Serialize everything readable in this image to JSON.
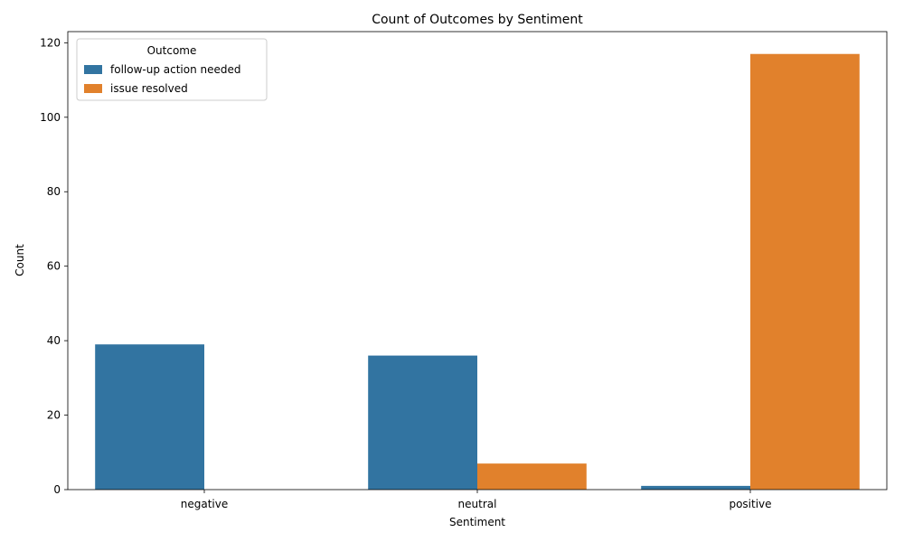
{
  "chart_data": {
    "type": "bar",
    "title": "Count of Outcomes by Sentiment",
    "xlabel": "Sentiment",
    "ylabel": "Count",
    "categories": [
      "negative",
      "neutral",
      "positive"
    ],
    "series": [
      {
        "name": "follow-up action needed",
        "values": [
          39,
          36,
          1
        ],
        "color": "#3274a1"
      },
      {
        "name": "issue resolved",
        "values": [
          0,
          7,
          117
        ],
        "color": "#e1812c"
      }
    ],
    "ylim": [
      0,
      123
    ],
    "yticks": [
      0,
      20,
      40,
      60,
      80,
      100,
      120
    ],
    "legend": {
      "title": "Outcome",
      "placement": "top-left"
    },
    "grid": false
  }
}
